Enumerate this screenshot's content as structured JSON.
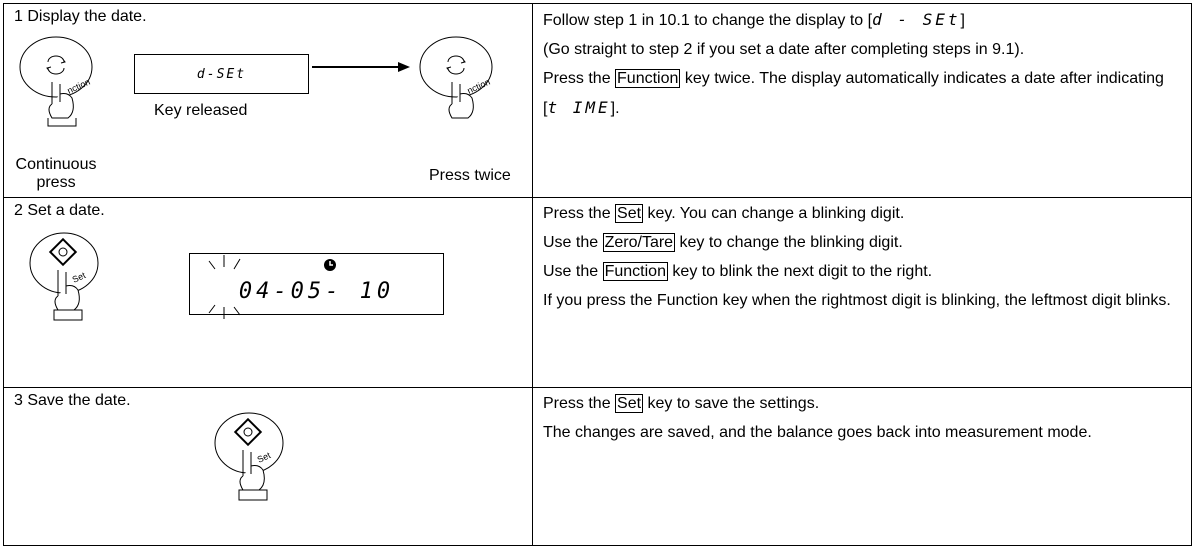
{
  "rows": [
    {
      "title": "1  Display the date.",
      "display": "d-SEt",
      "key_label_left": "nction",
      "key_label_right": "nction",
      "label_released": "Key released",
      "label_continuous": "Continuous",
      "label_press": "press",
      "label_twice": "Press twice",
      "right": [
        {
          "parts": [
            {
              "text": "Follow step 1 in 10.1 to change the display to ["
            },
            {
              "display": "d - SEt"
            },
            {
              "text": "]"
            }
          ]
        },
        {
          "parts": [
            {
              "text": "(Go straight to step 2 if you set a date after completing steps in 9.1)."
            }
          ]
        },
        {
          "parts": [
            {
              "text": "Press the "
            },
            {
              "key": "Function"
            },
            {
              "text": " key twice.   The display automatically indicates a date after indicating"
            }
          ]
        },
        {
          "parts": [
            {
              "text": "["
            },
            {
              "display": "t IME"
            },
            {
              "text": "]."
            }
          ]
        }
      ]
    },
    {
      "title": "2  Set a date.",
      "display": "04-05- 10",
      "key_label": "Set",
      "right": [
        {
          "parts": [
            {
              "text": "Press the "
            },
            {
              "key": "Set"
            },
            {
              "text": " key. You can change a blinking digit."
            }
          ]
        },
        {
          "parts": [
            {
              "text": "Use the "
            },
            {
              "key": "Zero/Tare"
            },
            {
              "text": " key to change the blinking digit."
            }
          ]
        },
        {
          "parts": [
            {
              "text": "Use the "
            },
            {
              "key": "Function"
            },
            {
              "text": " key to blink the next digit to the right."
            }
          ]
        },
        {
          "parts": [
            {
              "text": "If you press the Function key when the rightmost digit is blinking, the leftmost digit blinks."
            }
          ]
        }
      ]
    },
    {
      "title": "3  Save the date.",
      "key_label": "Set",
      "right": [
        {
          "parts": [
            {
              "text": "Press the "
            },
            {
              "key": "Set"
            },
            {
              "text": " key to save the settings."
            }
          ]
        },
        {
          "parts": [
            {
              "text": "The changes are saved, and the balance goes back into measurement mode."
            }
          ]
        }
      ]
    }
  ]
}
